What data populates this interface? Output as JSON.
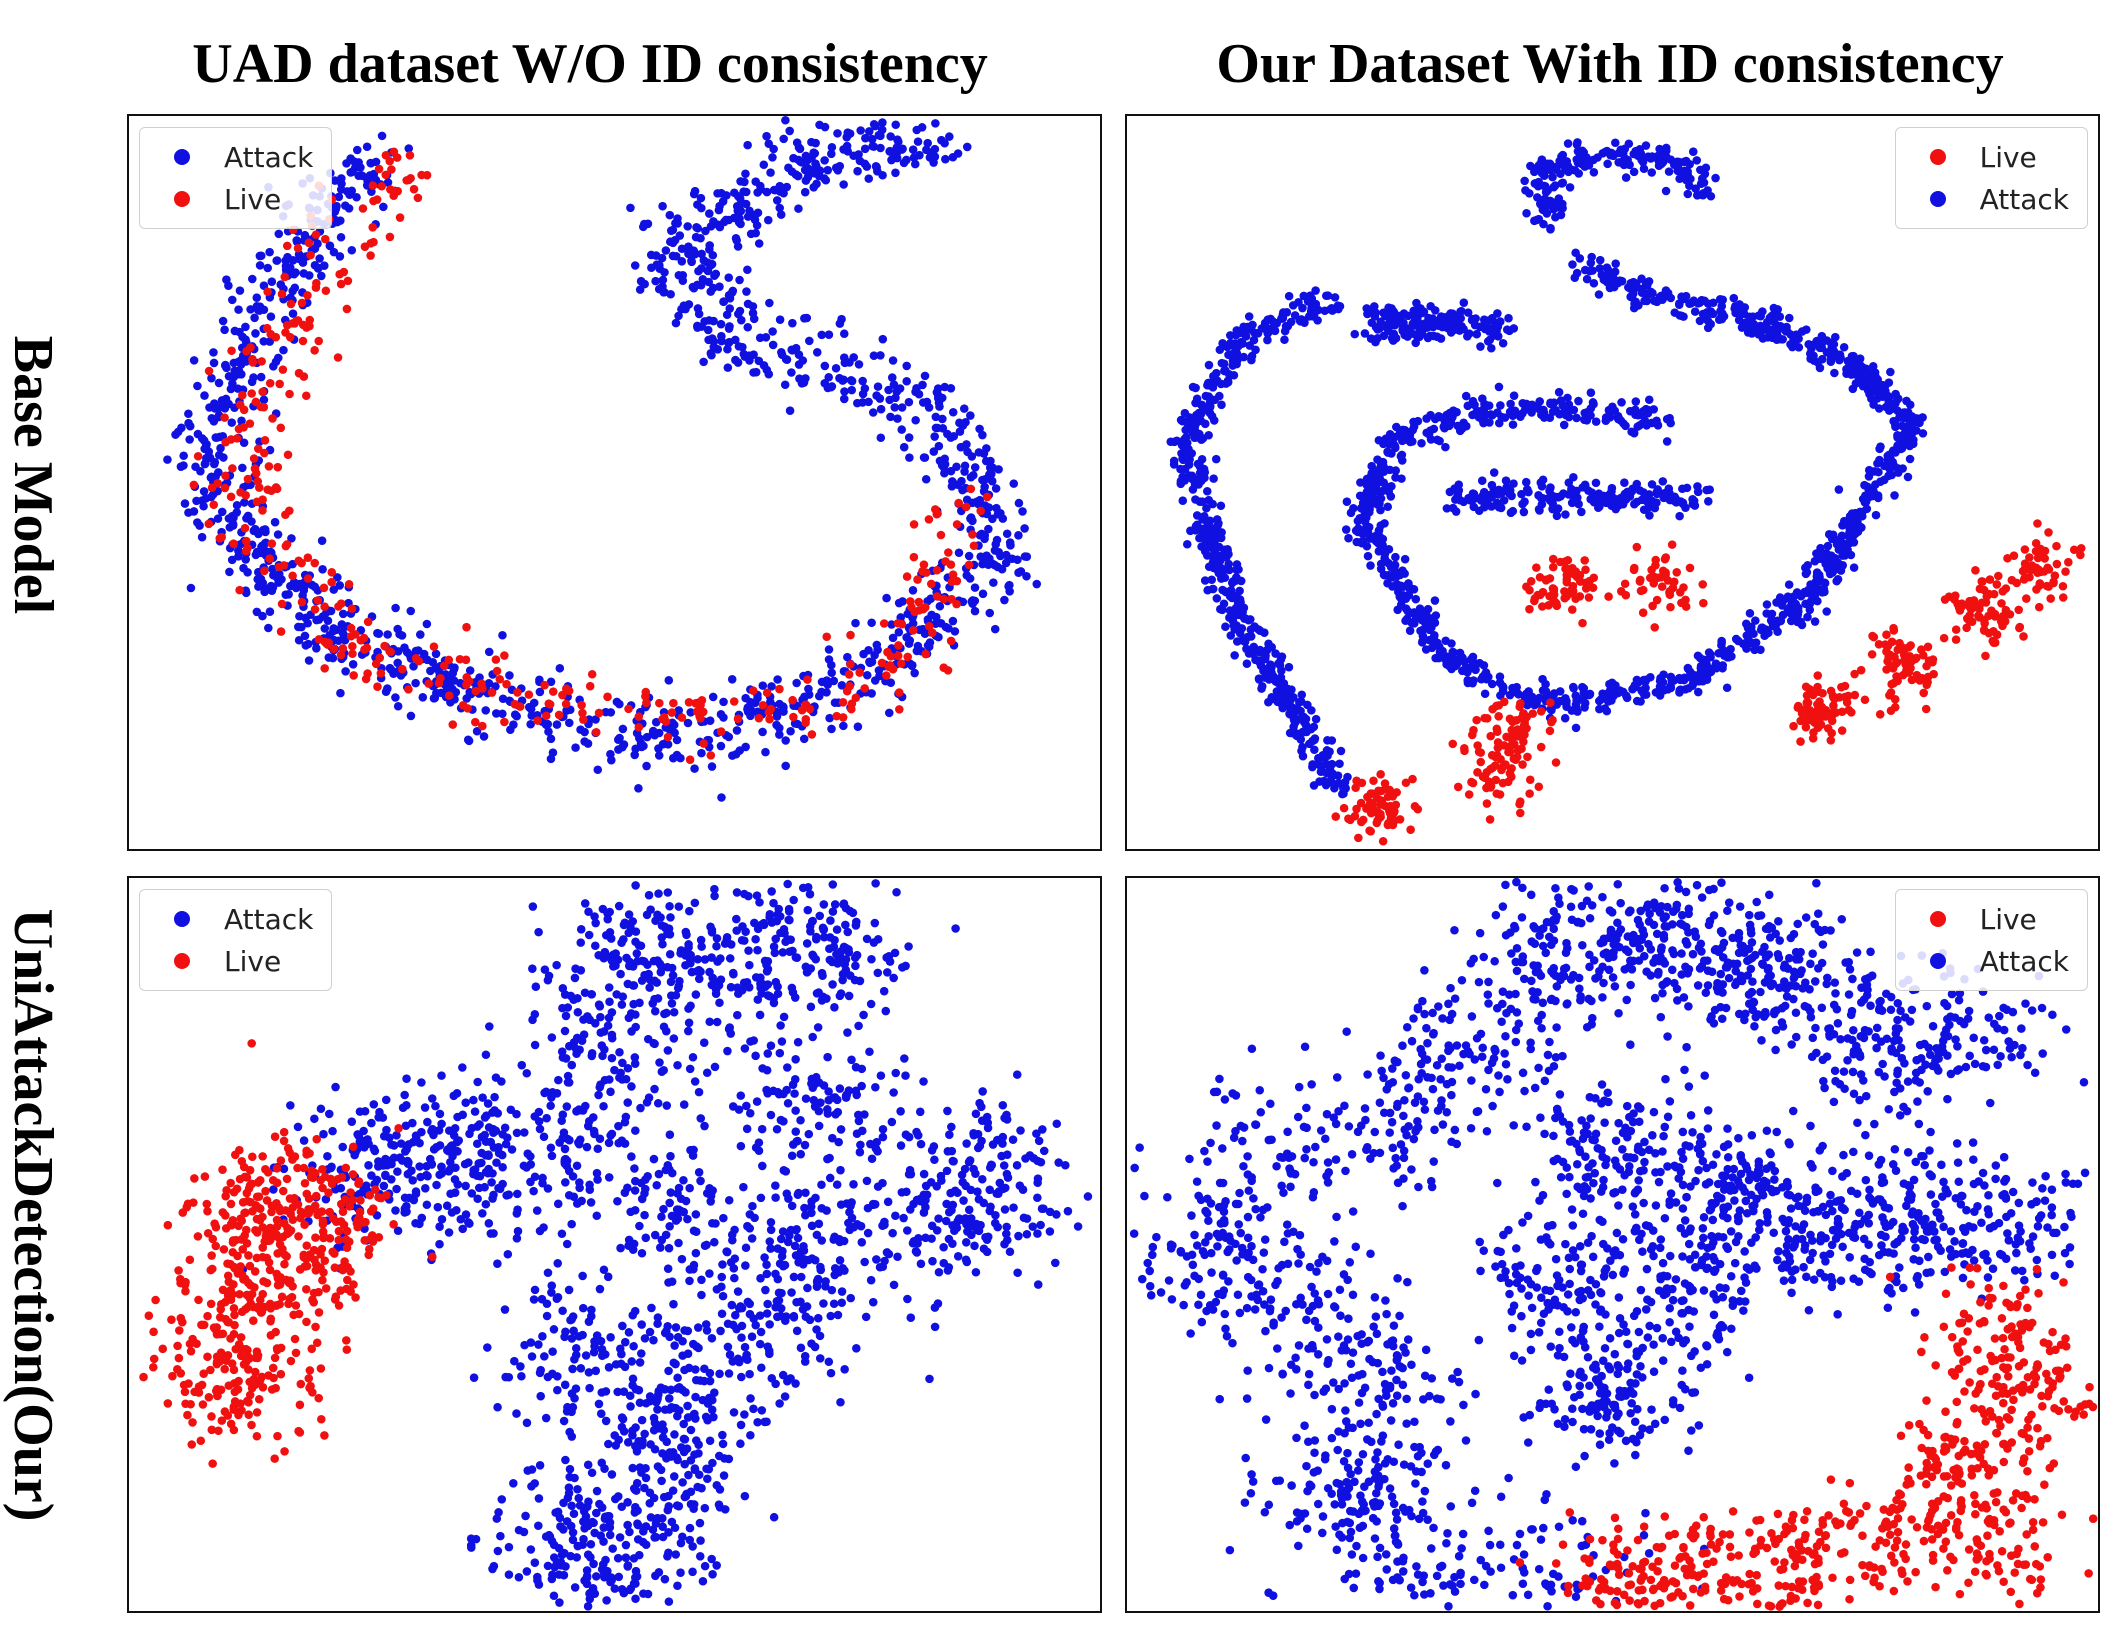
{
  "column_titles": [
    "UAD dataset W/O ID consistency",
    "Our Dataset With ID consistency"
  ],
  "row_titles": [
    "Base Model",
    "UniAttackDetection(Our)"
  ],
  "colors": {
    "Attack": "#1010e0",
    "Live": "#f01010"
  },
  "chart_data": [
    {
      "type": "scatter",
      "title": "",
      "row": "Base Model",
      "column": "UAD dataset W/O ID consistency",
      "legend": [
        "Attack",
        "Live"
      ],
      "legend_position": "top-left",
      "grid": false,
      "series": [
        {
          "name": "Attack",
          "color": "#1010e0",
          "shape": "arc",
          "n": 1500,
          "spread": 9,
          "path": [
            [
              0.25,
              0.05
            ],
            [
              0.12,
              0.3
            ],
            [
              0.08,
              0.5
            ],
            [
              0.2,
              0.7
            ],
            [
              0.38,
              0.8
            ],
            [
              0.55,
              0.85
            ],
            [
              0.75,
              0.78
            ],
            [
              0.9,
              0.6
            ],
            [
              0.83,
              0.4
            ],
            [
              0.62,
              0.3
            ],
            [
              0.55,
              0.18
            ],
            [
              0.7,
              0.06
            ],
            [
              0.85,
              0.03
            ]
          ]
        },
        {
          "name": "Live",
          "color": "#f01010",
          "shape": "arc",
          "n": 380,
          "spread": 10,
          "path": [
            [
              0.3,
              0.05
            ],
            [
              0.22,
              0.15
            ],
            [
              0.14,
              0.35
            ],
            [
              0.12,
              0.55
            ],
            [
              0.22,
              0.72
            ],
            [
              0.4,
              0.8
            ],
            [
              0.6,
              0.82
            ],
            [
              0.8,
              0.75
            ],
            [
              0.85,
              0.55
            ]
          ]
        }
      ]
    },
    {
      "type": "scatter",
      "title": "",
      "row": "Base Model",
      "column": "Our Dataset With ID consistency",
      "legend": [
        "Live",
        "Attack"
      ],
      "legend_position": "top-right",
      "grid": false,
      "series": [
        {
          "name": "Attack",
          "color": "#1010e0",
          "shape": "curves",
          "n": 2300,
          "spread": 5,
          "paths": [
            [
              [
                0.22,
                0.92
              ],
              [
                0.1,
                0.65
              ],
              [
                0.06,
                0.45
              ],
              [
                0.12,
                0.3
              ],
              [
                0.22,
                0.25
              ]
            ],
            [
              [
                0.25,
                0.27
              ],
              [
                0.39,
                0.29
              ]
            ],
            [
              [
                0.44,
                0.14
              ],
              [
                0.42,
                0.08
              ],
              [
                0.48,
                0.05
              ],
              [
                0.55,
                0.06
              ],
              [
                0.6,
                0.1
              ]
            ],
            [
              [
                0.46,
                0.2
              ],
              [
                0.55,
                0.25
              ],
              [
                0.65,
                0.28
              ],
              [
                0.75,
                0.34
              ],
              [
                0.81,
                0.42
              ],
              [
                0.75,
                0.55
              ],
              [
                0.7,
                0.66
              ],
              [
                0.58,
                0.77
              ],
              [
                0.44,
                0.8
              ],
              [
                0.33,
                0.74
              ],
              [
                0.24,
                0.55
              ],
              [
                0.28,
                0.44
              ],
              [
                0.36,
                0.4
              ],
              [
                0.46,
                0.4
              ],
              [
                0.56,
                0.42
              ]
            ],
            [
              [
                0.33,
                0.52
              ],
              [
                0.45,
                0.52
              ],
              [
                0.6,
                0.52
              ]
            ],
            [
              [
                0.25,
                0.3
              ],
              [
                0.35,
                0.28
              ]
            ]
          ]
        },
        {
          "name": "Live",
          "color": "#f01010",
          "shape": "clusters",
          "n": 560,
          "spread": 9,
          "clusters": [
            [
              0.45,
              0.64
            ],
            [
              0.55,
              0.64
            ],
            [
              0.38,
              0.9
            ],
            [
              0.26,
              0.94
            ],
            [
              0.4,
              0.84
            ],
            [
              0.72,
              0.8
            ],
            [
              0.8,
              0.75
            ],
            [
              0.88,
              0.68
            ],
            [
              0.94,
              0.62
            ]
          ]
        }
      ]
    },
    {
      "type": "scatter",
      "title": "",
      "row": "UniAttackDetection(Our)",
      "column": "UAD dataset W/O ID consistency",
      "legend": [
        "Attack",
        "Live"
      ],
      "legend_position": "top-left",
      "grid": false,
      "series": [
        {
          "name": "Attack",
          "color": "#1010e0",
          "shape": "clusters",
          "n": 2100,
          "spread": 22,
          "clusters": [
            [
              0.52,
              0.1
            ],
            [
              0.62,
              0.1
            ],
            [
              0.72,
              0.08
            ],
            [
              0.5,
              0.25
            ],
            [
              0.42,
              0.38
            ],
            [
              0.32,
              0.38
            ],
            [
              0.24,
              0.4
            ],
            [
              0.55,
              0.45
            ],
            [
              0.7,
              0.3
            ],
            [
              0.72,
              0.48
            ],
            [
              0.85,
              0.48
            ],
            [
              0.88,
              0.38
            ],
            [
              0.67,
              0.58
            ],
            [
              0.46,
              0.65
            ],
            [
              0.58,
              0.7
            ],
            [
              0.55,
              0.8
            ],
            [
              0.45,
              0.88
            ],
            [
              0.5,
              0.94
            ]
          ]
        },
        {
          "name": "Live",
          "color": "#f01010",
          "shape": "clusters",
          "n": 520,
          "spread": 20,
          "clusters": [
            [
              0.15,
              0.46
            ],
            [
              0.12,
              0.56
            ],
            [
              0.1,
              0.64
            ],
            [
              0.13,
              0.7
            ],
            [
              0.18,
              0.44
            ],
            [
              0.2,
              0.5
            ]
          ]
        }
      ]
    },
    {
      "type": "scatter",
      "title": "",
      "row": "UniAttackDetection(Our)",
      "column": "Our Dataset With ID consistency",
      "legend": [
        "Live",
        "Attack"
      ],
      "legend_position": "top-right",
      "grid": false,
      "series": [
        {
          "name": "Attack",
          "color": "#1010e0",
          "shape": "mixed",
          "n": 2500,
          "spread": 20,
          "clusters": [
            [
              0.45,
              0.1
            ],
            [
              0.55,
              0.08
            ],
            [
              0.65,
              0.12
            ],
            [
              0.75,
              0.2
            ],
            [
              0.85,
              0.22
            ],
            [
              0.5,
              0.38
            ],
            [
              0.62,
              0.42
            ],
            [
              0.7,
              0.48
            ],
            [
              0.58,
              0.56
            ],
            [
              0.45,
              0.56
            ],
            [
              0.8,
              0.45
            ],
            [
              0.9,
              0.48
            ],
            [
              0.5,
              0.7
            ]
          ],
          "path": [
            [
              0.4,
              0.15
            ],
            [
              0.35,
              0.28
            ],
            [
              0.22,
              0.35
            ],
            [
              0.08,
              0.42
            ],
            [
              0.06,
              0.5
            ],
            [
              0.15,
              0.58
            ],
            [
              0.28,
              0.65
            ],
            [
              0.28,
              0.74
            ],
            [
              0.22,
              0.82
            ],
            [
              0.22,
              0.92
            ],
            [
              0.35,
              0.95
            ],
            [
              0.5,
              0.98
            ]
          ]
        },
        {
          "name": "Live",
          "color": "#f01010",
          "shape": "clusters",
          "n": 700,
          "spread": 18,
          "clusters": [
            [
              0.5,
              0.97
            ],
            [
              0.58,
              0.96
            ],
            [
              0.68,
              0.94
            ],
            [
              0.78,
              0.9
            ],
            [
              0.86,
              0.8
            ],
            [
              0.9,
              0.9
            ],
            [
              0.93,
              0.7
            ],
            [
              0.9,
              0.62
            ]
          ]
        }
      ]
    }
  ]
}
